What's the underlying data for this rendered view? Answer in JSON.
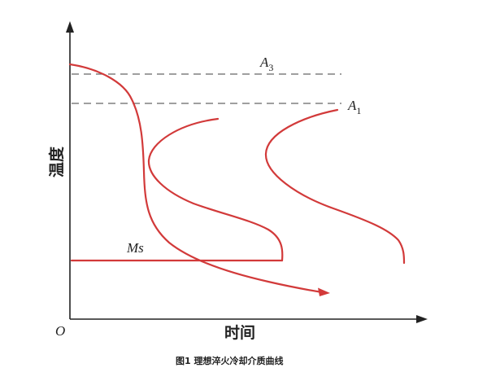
{
  "diagram": {
    "caption": "图1  理想淬火冷却介质曲线",
    "x_axis_label": "时间",
    "y_axis_label": "温度",
    "origin_label": "O",
    "lines": {
      "a3": {
        "label": "A",
        "subscript": "3"
      },
      "a1": {
        "label": "A",
        "subscript": "1"
      },
      "ms": {
        "label": "Ms"
      }
    },
    "colors": {
      "curve": "#d23a3a",
      "axis": "#222222",
      "dashed": "#666666"
    }
  }
}
